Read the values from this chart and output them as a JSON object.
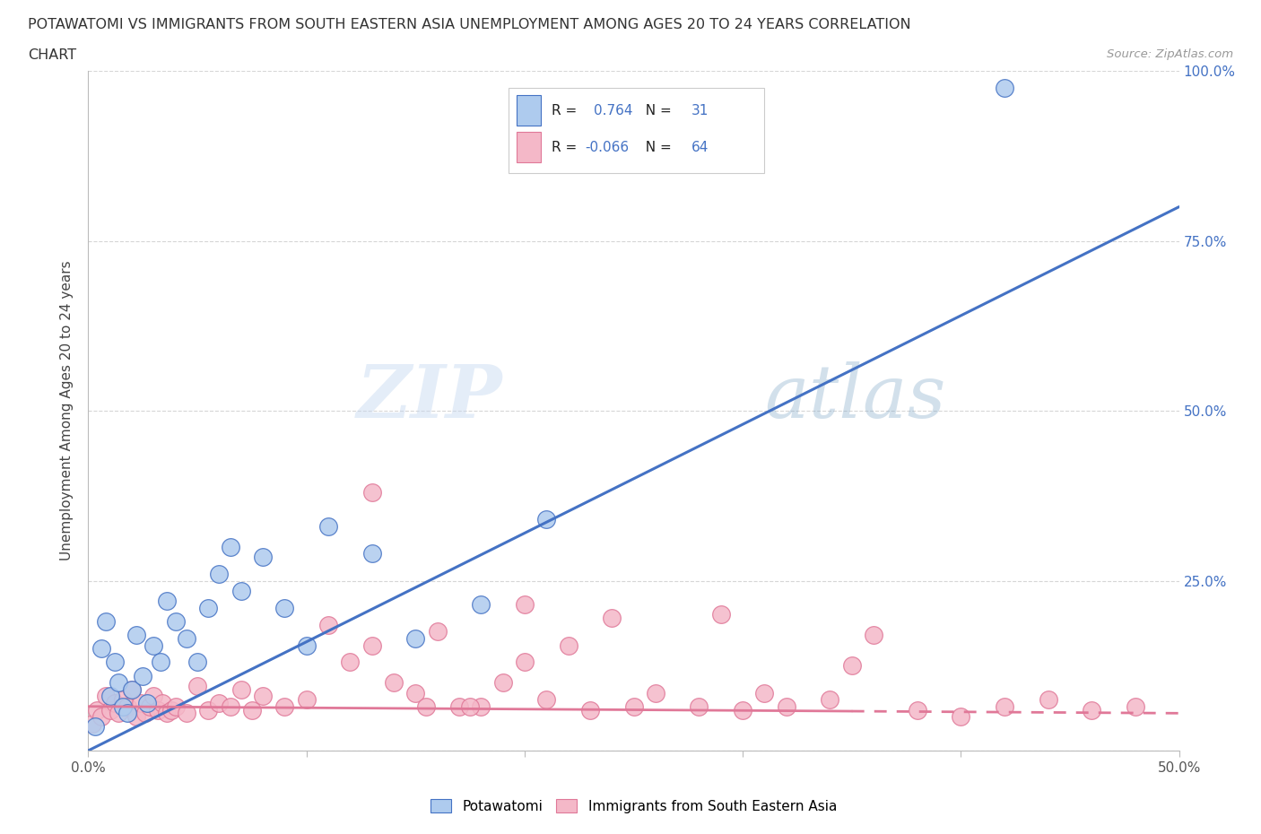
{
  "title_line1": "POTAWATOMI VS IMMIGRANTS FROM SOUTH EASTERN ASIA UNEMPLOYMENT AMONG AGES 20 TO 24 YEARS CORRELATION",
  "title_line2": "CHART",
  "source": "Source: ZipAtlas.com",
  "ylabel": "Unemployment Among Ages 20 to 24 years",
  "xlim": [
    0.0,
    0.5
  ],
  "ylim": [
    0.0,
    1.0
  ],
  "R_blue": 0.764,
  "N_blue": 31,
  "R_pink": -0.066,
  "N_pink": 64,
  "blue_color": "#aecbee",
  "blue_line_color": "#4472c4",
  "pink_color": "#f4b8c8",
  "pink_line_color": "#e07898",
  "watermark_zip": "ZIP",
  "watermark_atlas": "atlas",
  "legend_label1": "Potawatomi",
  "legend_label2": "Immigrants from South Eastern Asia",
  "blue_x": [
    0.003,
    0.006,
    0.008,
    0.01,
    0.012,
    0.014,
    0.016,
    0.018,
    0.02,
    0.022,
    0.025,
    0.027,
    0.03,
    0.033,
    0.036,
    0.04,
    0.045,
    0.05,
    0.055,
    0.06,
    0.065,
    0.07,
    0.08,
    0.09,
    0.1,
    0.11,
    0.13,
    0.15,
    0.18,
    0.21,
    0.42
  ],
  "blue_y": [
    0.035,
    0.15,
    0.19,
    0.08,
    0.13,
    0.1,
    0.065,
    0.055,
    0.09,
    0.17,
    0.11,
    0.07,
    0.155,
    0.13,
    0.22,
    0.19,
    0.165,
    0.13,
    0.21,
    0.26,
    0.3,
    0.235,
    0.285,
    0.21,
    0.155,
    0.33,
    0.29,
    0.165,
    0.215,
    0.34,
    0.975
  ],
  "pink_x": [
    0.002,
    0.004,
    0.006,
    0.008,
    0.01,
    0.012,
    0.014,
    0.016,
    0.018,
    0.02,
    0.022,
    0.024,
    0.026,
    0.028,
    0.03,
    0.032,
    0.034,
    0.036,
    0.038,
    0.04,
    0.045,
    0.05,
    0.055,
    0.06,
    0.065,
    0.07,
    0.075,
    0.08,
    0.09,
    0.1,
    0.11,
    0.12,
    0.13,
    0.14,
    0.15,
    0.16,
    0.17,
    0.18,
    0.19,
    0.2,
    0.21,
    0.22,
    0.23,
    0.24,
    0.25,
    0.26,
    0.28,
    0.3,
    0.31,
    0.32,
    0.34,
    0.36,
    0.38,
    0.4,
    0.42,
    0.44,
    0.46,
    0.48,
    0.13,
    0.2,
    0.29,
    0.35,
    0.155,
    0.175
  ],
  "pink_y": [
    0.04,
    0.06,
    0.05,
    0.08,
    0.06,
    0.07,
    0.055,
    0.075,
    0.065,
    0.09,
    0.05,
    0.07,
    0.055,
    0.065,
    0.08,
    0.06,
    0.07,
    0.055,
    0.06,
    0.065,
    0.055,
    0.095,
    0.06,
    0.07,
    0.065,
    0.09,
    0.06,
    0.08,
    0.065,
    0.075,
    0.185,
    0.13,
    0.155,
    0.1,
    0.085,
    0.175,
    0.065,
    0.065,
    0.1,
    0.13,
    0.075,
    0.155,
    0.06,
    0.195,
    0.065,
    0.085,
    0.065,
    0.06,
    0.085,
    0.065,
    0.075,
    0.17,
    0.06,
    0.05,
    0.065,
    0.075,
    0.06,
    0.065,
    0.38,
    0.215,
    0.2,
    0.125,
    0.065,
    0.065
  ],
  "blue_trend_x0": 0.0,
  "blue_trend_y0": 0.0,
  "blue_trend_x1": 0.5,
  "blue_trend_y1": 0.8,
  "pink_trend_x0": 0.0,
  "pink_trend_y0": 0.065,
  "pink_trend_x1": 0.5,
  "pink_trend_y1": 0.055
}
